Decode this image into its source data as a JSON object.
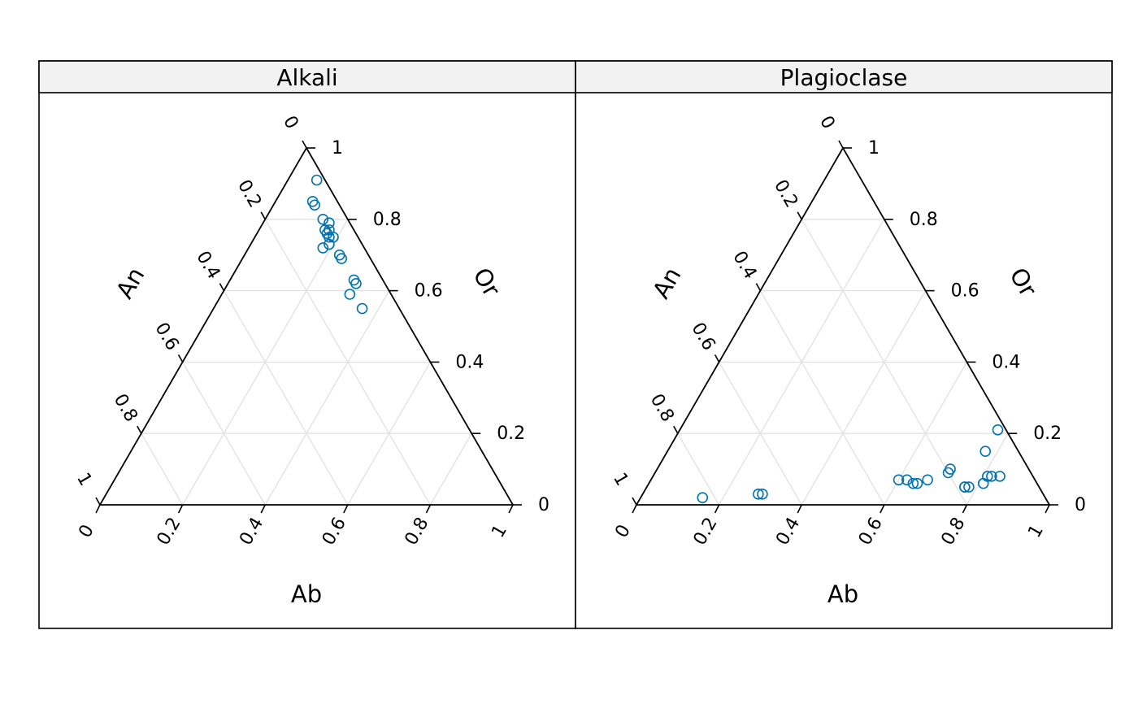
{
  "chart_data": [
    {
      "type": "scatter",
      "subtype": "ternary",
      "panel_title": "Alkali",
      "axes": {
        "bottom": {
          "label": "Ab",
          "ticks": [
            "0",
            "0.2",
            "0.4",
            "0.6",
            "0.8",
            "1"
          ]
        },
        "left": {
          "label": "An",
          "ticks": [
            "1",
            "0.8",
            "0.6",
            "0.4",
            "0.2",
            "0"
          ]
        },
        "right": {
          "label": "Or",
          "ticks": [
            "0",
            "0.2",
            "0.4",
            "0.6",
            "0.8",
            "1"
          ]
        }
      },
      "grid": true,
      "point_color": "#0072B2",
      "points": [
        {
          "Ab": 0.07,
          "An": 0.02,
          "Or": 0.91
        },
        {
          "Ab": 0.09,
          "An": 0.06,
          "Or": 0.85
        },
        {
          "Ab": 0.1,
          "An": 0.06,
          "Or": 0.84
        },
        {
          "Ab": 0.14,
          "An": 0.06,
          "Or": 0.8
        },
        {
          "Ab": 0.16,
          "An": 0.05,
          "Or": 0.79
        },
        {
          "Ab": 0.16,
          "An": 0.07,
          "Or": 0.77
        },
        {
          "Ab": 0.17,
          "An": 0.06,
          "Or": 0.77
        },
        {
          "Ab": 0.17,
          "An": 0.07,
          "Or": 0.76
        },
        {
          "Ab": 0.18,
          "An": 0.07,
          "Or": 0.75
        },
        {
          "Ab": 0.19,
          "An": 0.06,
          "Or": 0.75
        },
        {
          "Ab": 0.19,
          "An": 0.08,
          "Or": 0.73
        },
        {
          "Ab": 0.18,
          "An": 0.1,
          "Or": 0.72
        },
        {
          "Ab": 0.23,
          "An": 0.07,
          "Or": 0.7
        },
        {
          "Ab": 0.24,
          "An": 0.07,
          "Or": 0.69
        },
        {
          "Ab": 0.3,
          "An": 0.07,
          "Or": 0.63
        },
        {
          "Ab": 0.31,
          "An": 0.07,
          "Or": 0.62
        },
        {
          "Ab": 0.31,
          "An": 0.1,
          "Or": 0.59
        },
        {
          "Ab": 0.36,
          "An": 0.09,
          "Or": 0.55
        }
      ]
    },
    {
      "type": "scatter",
      "subtype": "ternary",
      "panel_title": "Plagioclase",
      "axes": {
        "bottom": {
          "label": "Ab",
          "ticks": [
            "0",
            "0.2",
            "0.4",
            "0.6",
            "0.8",
            "1"
          ]
        },
        "left": {
          "label": "An",
          "ticks": [
            "1",
            "0.8",
            "0.6",
            "0.4",
            "0.2",
            "0"
          ]
        },
        "right": {
          "label": "Or",
          "ticks": [
            "0",
            "0.2",
            "0.4",
            "0.6",
            "0.8",
            "1"
          ]
        }
      },
      "grid": true,
      "point_color": "#0072B2",
      "points": [
        {
          "Ab": 0.15,
          "An": 0.83,
          "Or": 0.02
        },
        {
          "Ab": 0.28,
          "An": 0.69,
          "Or": 0.03
        },
        {
          "Ab": 0.29,
          "An": 0.68,
          "Or": 0.03
        },
        {
          "Ab": 0.6,
          "An": 0.33,
          "Or": 0.07
        },
        {
          "Ab": 0.62,
          "An": 0.31,
          "Or": 0.07
        },
        {
          "Ab": 0.64,
          "An": 0.3,
          "Or": 0.06
        },
        {
          "Ab": 0.65,
          "An": 0.29,
          "Or": 0.06
        },
        {
          "Ab": 0.67,
          "An": 0.26,
          "Or": 0.07
        },
        {
          "Ab": 0.71,
          "An": 0.2,
          "Or": 0.09
        },
        {
          "Ab": 0.71,
          "An": 0.19,
          "Or": 0.1
        },
        {
          "Ab": 0.77,
          "An": 0.18,
          "Or": 0.05
        },
        {
          "Ab": 0.77,
          "An": 0.18,
          "Or": 0.05
        },
        {
          "Ab": 0.78,
          "An": 0.17,
          "Or": 0.05
        },
        {
          "Ab": 0.81,
          "An": 0.13,
          "Or": 0.06
        },
        {
          "Ab": 0.81,
          "An": 0.11,
          "Or": 0.08
        },
        {
          "Ab": 0.82,
          "An": 0.1,
          "Or": 0.08
        },
        {
          "Ab": 0.84,
          "An": 0.08,
          "Or": 0.08
        },
        {
          "Ab": 0.77,
          "An": 0.08,
          "Or": 0.15
        },
        {
          "Ab": 0.77,
          "An": 0.02,
          "Or": 0.21
        }
      ]
    }
  ]
}
